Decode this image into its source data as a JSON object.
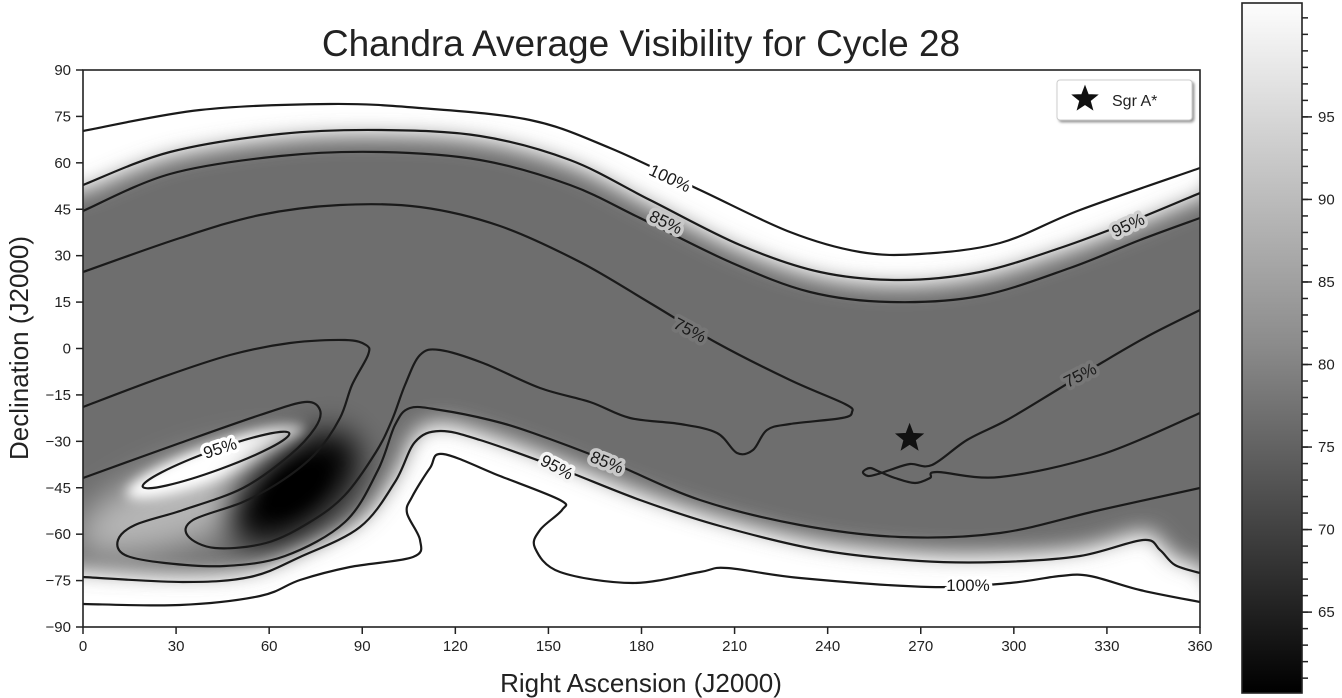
{
  "chart_data": {
    "type": "heatmap",
    "subtype": "filled image with contour lines",
    "title": "Chandra Average Visibility for Cycle 28",
    "xlabel": "Right Ascension (J2000)",
    "ylabel": "Declination (J2000)",
    "xlim": [
      0,
      360
    ],
    "ylim": [
      -90,
      90
    ],
    "xticks": [
      0,
      30,
      60,
      90,
      120,
      150,
      180,
      210,
      240,
      270,
      300,
      330,
      360
    ],
    "yticks": [
      90,
      75,
      60,
      45,
      30,
      15,
      0,
      -15,
      -30,
      -45,
      -60,
      -75,
      -90
    ],
    "ytick_labels": [
      "90",
      "75",
      "60",
      "45",
      "30",
      "15",
      "0",
      "−15",
      "−30",
      "−45",
      "−60",
      "−75",
      "−90"
    ],
    "grid": false,
    "colormap": "greys (black = low, white = high)",
    "value_units": "% visibility",
    "contour_levels": [
      75,
      85,
      95,
      100
    ],
    "contour_labels": [
      {
        "text": "100%"
      },
      {
        "text": "85%"
      },
      {
        "text": "75%"
      },
      {
        "text": "95%"
      },
      {
        "text": "95%"
      },
      {
        "text": "95%"
      },
      {
        "text": "85%"
      },
      {
        "text": "75%"
      },
      {
        "text": "100%"
      }
    ],
    "colorbar": {
      "range": [
        60,
        100
      ],
      "ticks": [
        95,
        90,
        85,
        80,
        75,
        70,
        65
      ],
      "tick_labels": [
        "95",
        "90",
        "85",
        "80",
        "75",
        "70",
        "65"
      ],
      "minor_step": 1
    },
    "minimum_region": {
      "ra": 70,
      "dec": -47,
      "approx_value": 61
    },
    "markers": [
      {
        "name": "Sgr A*",
        "ra": 266.4,
        "dec": -29.0,
        "symbol": "star"
      }
    ],
    "legend": {
      "entries": [
        "Sgr A*"
      ],
      "placement": "top-right"
    }
  }
}
